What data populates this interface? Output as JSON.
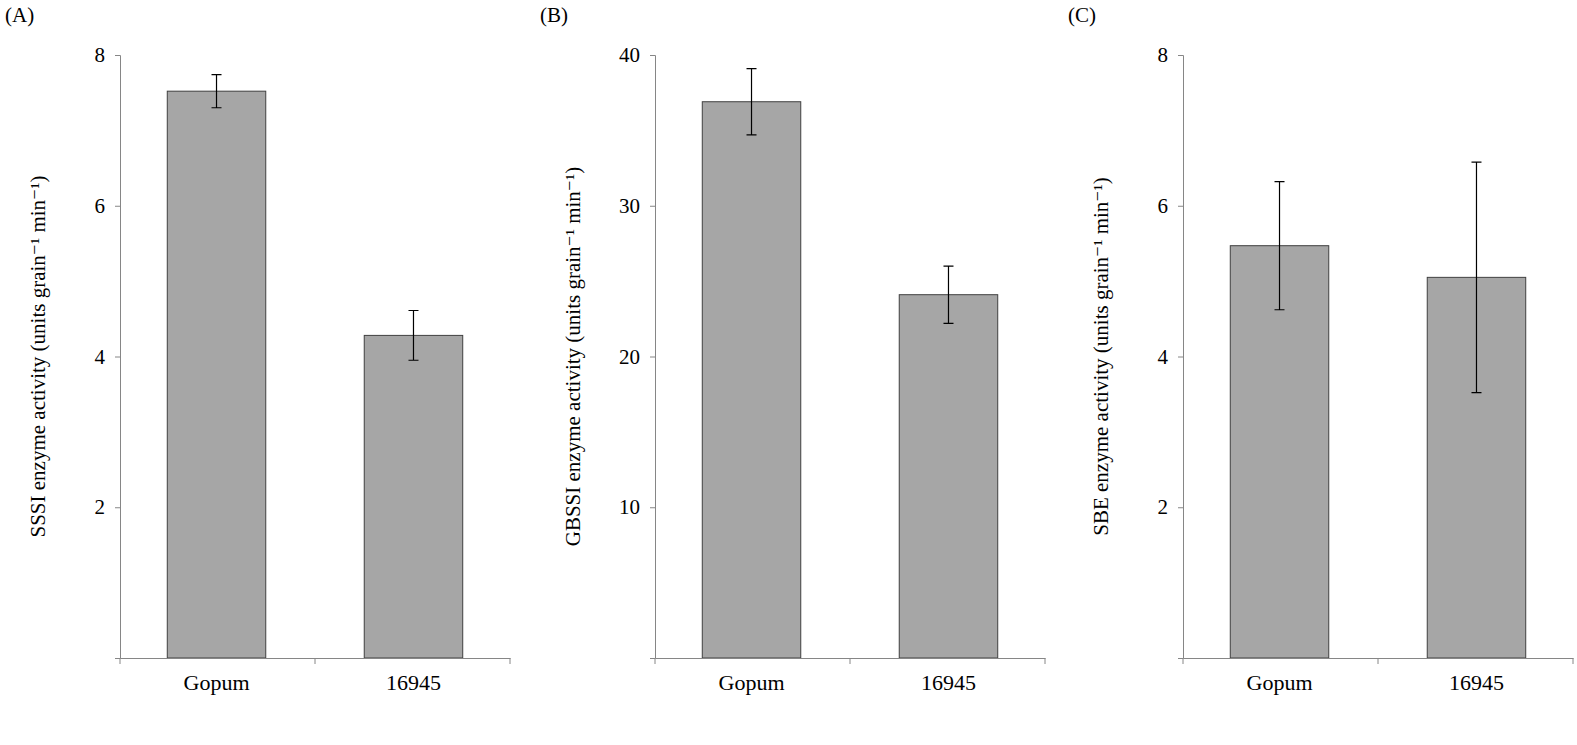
{
  "chart_data": [
    {
      "type": "bar",
      "title": "(A)",
      "y_label": "SSSI enzyme activity (units grain⁻¹ min⁻¹)",
      "categories": [
        "Gopum",
        "16945"
      ],
      "values": [
        7.52,
        4.28
      ],
      "errors": [
        0.22,
        0.33
      ],
      "color": "#a6a6a6",
      "ylim": [
        0,
        8
      ],
      "yticks": [
        2,
        4,
        6,
        8
      ]
    },
    {
      "type": "bar",
      "title": "(B)",
      "y_label": "GBSSI enzyme activity (units grain⁻¹ min⁻¹)",
      "categories": [
        "Gopum",
        "16945"
      ],
      "values": [
        36.9,
        24.1
      ],
      "errors": [
        2.2,
        1.9
      ],
      "color": "#a6a6a6",
      "ylim": [
        0,
        40
      ],
      "yticks": [
        10,
        20,
        30,
        40
      ]
    },
    {
      "type": "bar",
      "title": "(C)",
      "y_label": "SBE enzyme activity (units grain⁻¹ min⁻¹)",
      "categories": [
        "Gopum",
        "16945"
      ],
      "values": [
        5.47,
        5.05
      ],
      "errors": [
        0.85,
        1.53
      ],
      "color": "#a6a6a6",
      "ylim": [
        0,
        8
      ],
      "yticks": [
        2,
        4,
        6,
        8
      ]
    }
  ]
}
